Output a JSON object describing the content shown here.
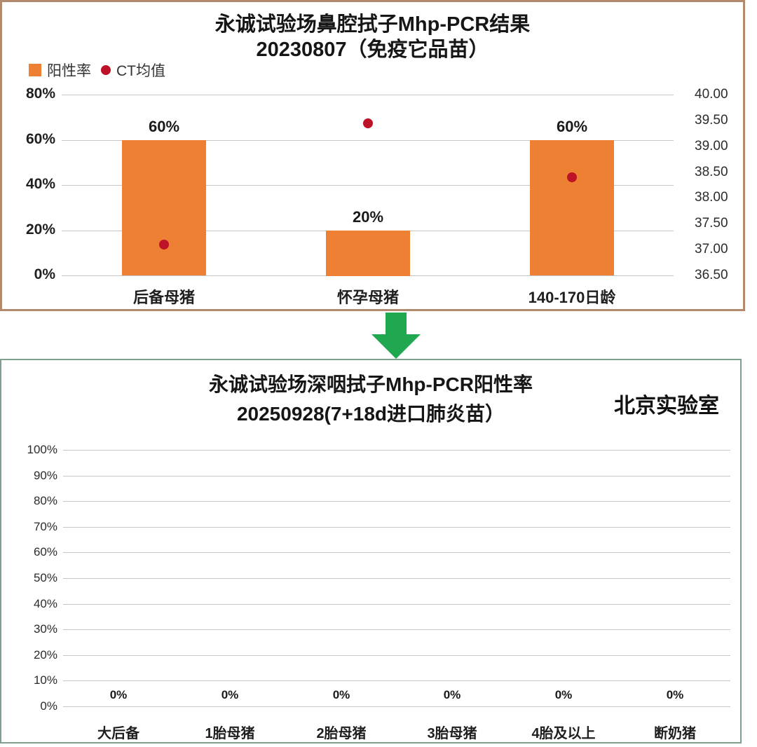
{
  "page": {
    "background": "#ffffff"
  },
  "connector": {
    "icon": "down-arrow-icon",
    "color": "#1FA850"
  },
  "chart_data": [
    {
      "type": "bar",
      "title": "永诚试验场鼻腔拭子Mhp-PCR结果",
      "subtitle": "20230807（免疫它品苗）",
      "legend_position": "top-left",
      "categories": [
        "后备母猪",
        "怀孕母猪",
        "140-170日龄"
      ],
      "series": [
        {
          "name": "阳性率",
          "type": "bar",
          "axis": "left",
          "color": "#EE8033",
          "values": [
            0.6,
            0.2,
            0.6
          ],
          "labels": [
            "60%",
            "20%",
            "60%"
          ]
        },
        {
          "name": "CT均值",
          "type": "scatter",
          "axis": "right",
          "color": "#BE1228",
          "values": [
            37.1,
            39.45,
            38.4
          ]
        }
      ],
      "left_axis": {
        "min": 0,
        "max": 0.8,
        "ticks": [
          "80%",
          "60%",
          "40%",
          "20%",
          "0%"
        ]
      },
      "right_axis": {
        "min": 36.5,
        "max": 40.0,
        "ticks": [
          "40.00",
          "39.50",
          "39.00",
          "38.50",
          "38.00",
          "37.50",
          "37.00",
          "36.50"
        ]
      },
      "grid": true,
      "border_color": "#B28A6E"
    },
    {
      "type": "bar",
      "title": "永诚试验场深咽拭子Mhp-PCR阳性率",
      "subtitle": "20250928(7+18d进口肺炎苗）",
      "annotation": "北京实验室",
      "categories": [
        "大后备",
        "1胎母猪",
        "2胎母猪",
        "3胎母猪",
        "4胎及以上",
        "断奶猪"
      ],
      "series": [
        {
          "name": "阳性率",
          "type": "bar",
          "axis": "left",
          "color": "#EE8033",
          "values": [
            0,
            0,
            0,
            0,
            0,
            0
          ],
          "labels": [
            "0%",
            "0%",
            "0%",
            "0%",
            "0%",
            "0%"
          ]
        }
      ],
      "left_axis": {
        "min": 0,
        "max": 1.0,
        "ticks": [
          "100%",
          "90%",
          "80%",
          "70%",
          "60%",
          "50%",
          "40%",
          "30%",
          "20%",
          "10%",
          "0%"
        ]
      },
      "grid": true,
      "border_color": "#7FA08F"
    }
  ]
}
